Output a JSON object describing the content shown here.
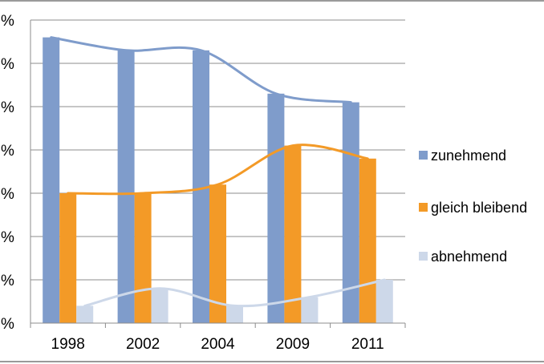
{
  "chart_data": {
    "type": "bar",
    "title": "",
    "xlabel": "",
    "ylabel": "",
    "categories": [
      "1998",
      "2002",
      "2004",
      "2009",
      "2011"
    ],
    "series": [
      {
        "name": "zunehmend",
        "color": "#7f9ccb",
        "values": [
          66,
          63,
          63,
          53,
          51
        ]
      },
      {
        "name": "gleich bleibend",
        "color": "#f39a27",
        "values": [
          30,
          30,
          32,
          41,
          38
        ]
      },
      {
        "name": "abnehmend",
        "color": "#cdd8e9",
        "values": [
          4,
          8,
          4,
          6,
          10
        ]
      }
    ],
    "trendlines": "smoothed line per series",
    "y_tick_labels": [
      "%",
      "%",
      "%",
      "%",
      "%",
      "%",
      "%",
      "%"
    ],
    "ylim": [
      0,
      70
    ],
    "y_step": 10,
    "grid": true,
    "legend": "right"
  }
}
